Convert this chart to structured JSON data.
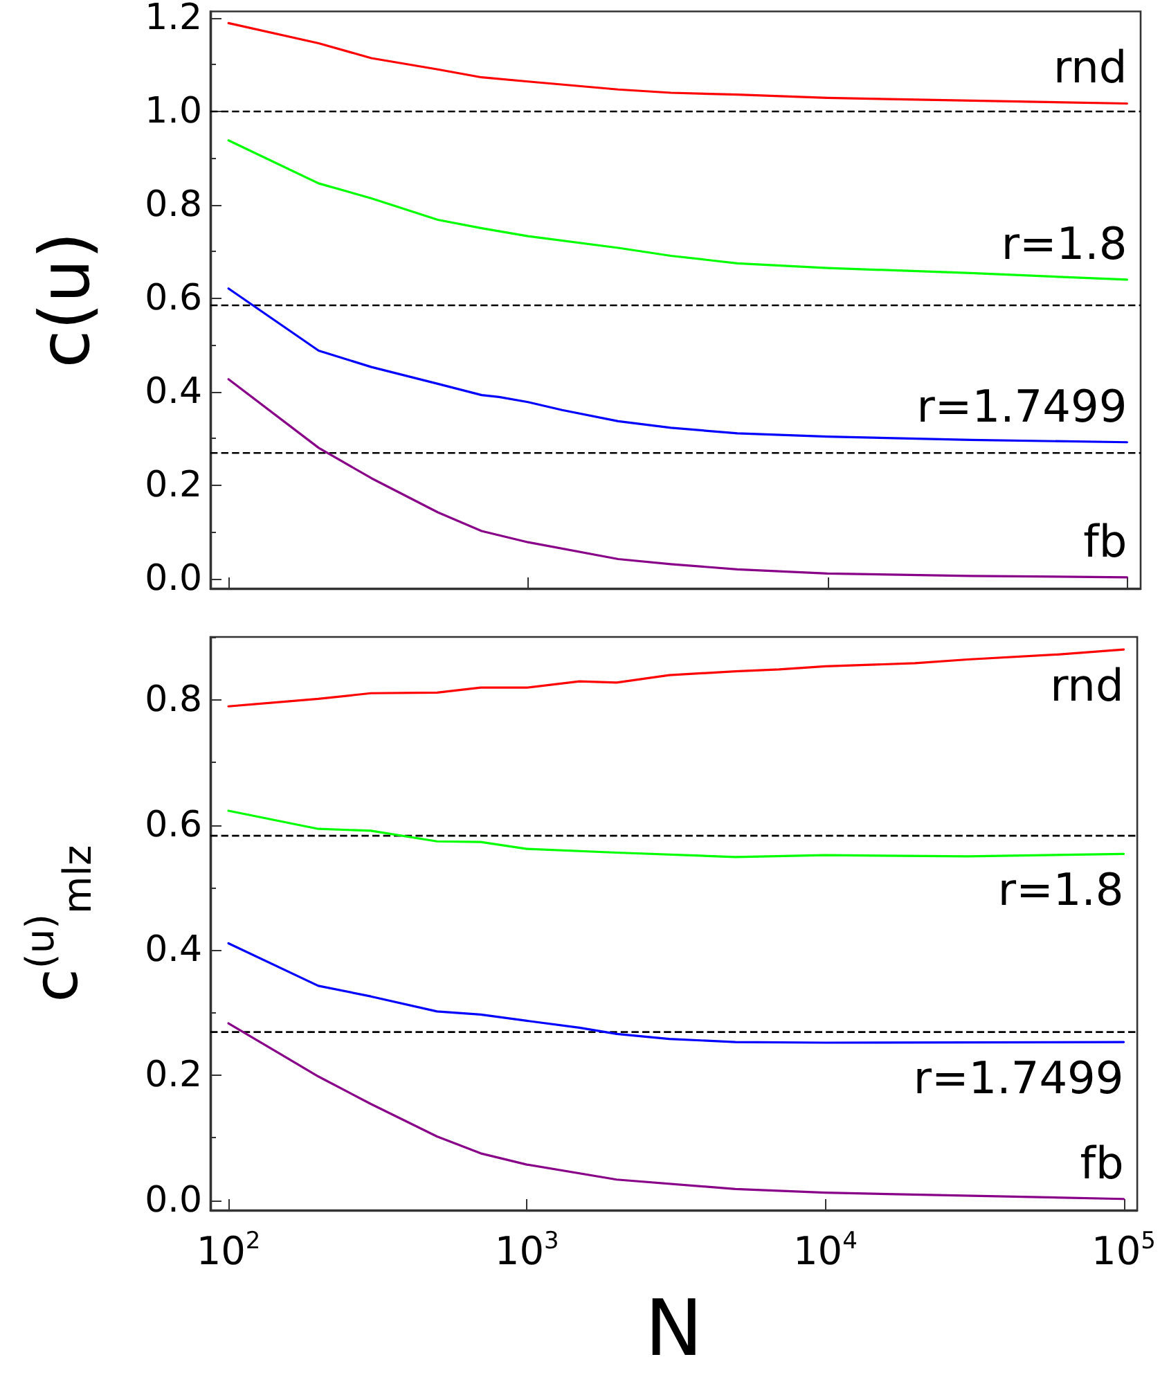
{
  "chart_data": [
    {
      "type": "line",
      "ylabel": "c(u)",
      "log": "x",
      "marker": "none",
      "line_style": "solid",
      "tick_labels": "y",
      "xlim": [
        87,
        111000
      ],
      "xticks": [
        100,
        1000,
        10000,
        100000
      ],
      "ylim": [
        -0.021,
        1.214
      ],
      "yticks": [
        {
          "value": 0,
          "label": "0.0"
        },
        {
          "value": 0.2,
          "label": "0.2"
        },
        {
          "value": 0.4,
          "label": "0.4"
        },
        {
          "value": 0.6,
          "label": "0.6"
        },
        {
          "value": 0.8,
          "label": "0.8"
        },
        {
          "value": 1,
          "label": "1.0"
        },
        {
          "value": 1.2,
          "label": "1.2"
        }
      ],
      "ref_lines": [
        {
          "axis": "y",
          "value": 1.0,
          "color": "#000000",
          "line_style": "dashed"
        },
        {
          "axis": "y",
          "value": 0.585,
          "color": "#000000",
          "line_style": "dashed"
        },
        {
          "axis": "y",
          "value": 0.269,
          "color": "#000000",
          "line_style": "dashed"
        }
      ],
      "series": [
        {
          "name": "rnd",
          "color": "#ff0000",
          "x": [
            100,
            200,
            300,
            500,
            700,
            1000,
            2000,
            3000,
            5000,
            10000,
            100000
          ],
          "values": [
            1.189,
            1.146,
            1.114,
            1.09,
            1.073,
            1.064,
            1.047,
            1.04,
            1.036,
            1.029,
            1.017
          ]
        },
        {
          "name": "r=1.8",
          "color": "#00ff00",
          "x": [
            100,
            200,
            300,
            500,
            700,
            1000,
            2000,
            3000,
            5000,
            10000,
            30000,
            100000
          ],
          "values": [
            0.938,
            0.846,
            0.814,
            0.768,
            0.75,
            0.733,
            0.708,
            0.691,
            0.675,
            0.665,
            0.654,
            0.64
          ]
        },
        {
          "name": "r=1.7499",
          "color": "#0000ff",
          "x": [
            100,
            200,
            300,
            500,
            700,
            800,
            1000,
            1300,
            2000,
            3000,
            5000,
            10000,
            30000,
            100000
          ],
          "values": [
            0.621,
            0.488,
            0.453,
            0.417,
            0.393,
            0.389,
            0.378,
            0.361,
            0.337,
            0.323,
            0.311,
            0.304,
            0.297,
            0.292
          ]
        },
        {
          "name": "fb",
          "color": "#880088",
          "x": [
            100,
            200,
            300,
            500,
            700,
            1000,
            2000,
            3000,
            5000,
            10000,
            30000,
            100000
          ],
          "values": [
            0.427,
            0.28,
            0.215,
            0.142,
            0.102,
            0.078,
            0.042,
            0.031,
            0.02,
            0.011,
            0.006,
            0.003
          ]
        }
      ]
    },
    {
      "type": "line",
      "xlabel": "N",
      "ylabel": "c$^{(u)}$$_{mlz}$",
      "log": "x",
      "marker": "none",
      "line_style": "solid",
      "xlim": [
        87,
        111000
      ],
      "xticks": [
        {
          "value": 100,
          "label": "10$^{2}$"
        },
        {
          "value": 1000,
          "label": "10$^{3}$"
        },
        {
          "value": 10000,
          "label": "10$^{4}$"
        },
        {
          "value": 100000,
          "label": "10$^{5}$"
        }
      ],
      "ylim": [
        -0.016,
        0.901
      ],
      "yticks": [
        {
          "value": 0,
          "label": "0.0"
        },
        {
          "value": 0.2,
          "label": "0.2"
        },
        {
          "value": 0.4,
          "label": "0.4"
        },
        {
          "value": 0.6,
          "label": "0.6"
        },
        {
          "value": 0.8,
          "label": "0.8"
        }
      ],
      "ref_lines": [
        {
          "axis": "y",
          "value": 0.583,
          "color": "#000000",
          "line_style": "dashed"
        },
        {
          "axis": "y",
          "value": 0.269,
          "color": "#000000",
          "line_style": "dashed"
        }
      ],
      "series": [
        {
          "name": "rnd",
          "color": "#ff0000",
          "x": [
            100,
            200,
            300,
            500,
            700,
            1000,
            1500,
            2000,
            3000,
            5000,
            7000,
            10000,
            20000,
            30000,
            60000,
            100000
          ],
          "values": [
            0.79,
            0.802,
            0.811,
            0.812,
            0.82,
            0.82,
            0.83,
            0.828,
            0.84,
            0.846,
            0.849,
            0.854,
            0.859,
            0.865,
            0.873,
            0.881
          ]
        },
        {
          "name": "r=1.8",
          "color": "#00ff00",
          "x": [
            100,
            200,
            300,
            500,
            700,
            1000,
            2000,
            5000,
            10000,
            30000,
            100000
          ],
          "values": [
            0.623,
            0.594,
            0.591,
            0.574,
            0.573,
            0.562,
            0.556,
            0.549,
            0.552,
            0.55,
            0.554
          ]
        },
        {
          "name": "r=1.7499",
          "color": "#0000ff",
          "x": [
            100,
            200,
            300,
            500,
            700,
            1000,
            1500,
            2000,
            3000,
            5000,
            10000,
            100000
          ],
          "values": [
            0.411,
            0.343,
            0.326,
            0.302,
            0.297,
            0.287,
            0.276,
            0.266,
            0.258,
            0.253,
            0.252,
            0.253
          ]
        },
        {
          "name": "fb",
          "color": "#880088",
          "x": [
            100,
            200,
            300,
            500,
            700,
            1000,
            2000,
            5000,
            10000,
            100000
          ],
          "values": [
            0.283,
            0.198,
            0.154,
            0.102,
            0.075,
            0.057,
            0.033,
            0.018,
            0.012,
            0.002
          ]
        }
      ]
    }
  ]
}
